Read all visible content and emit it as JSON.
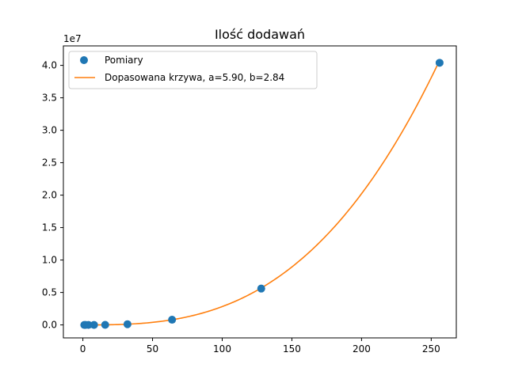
{
  "chart_data": {
    "type": "scatter",
    "title": "Ilość dodawań",
    "xlabel": "",
    "ylabel": "",
    "offset_label": "1e7",
    "xlim": [
      -14,
      268
    ],
    "ylim": [
      -2000000,
      43000000
    ],
    "y_scale": 10000000,
    "x_ticks": [
      0,
      50,
      100,
      150,
      200,
      250
    ],
    "x_tick_labels": [
      "0",
      "50",
      "100",
      "150",
      "200",
      "250"
    ],
    "y_ticks": [
      0,
      5000000,
      10000000,
      15000000,
      20000000,
      25000000,
      30000000,
      35000000,
      40000000
    ],
    "y_tick_labels": [
      "0.0",
      "0.5",
      "1.0",
      "1.5",
      "2.0",
      "2.5",
      "3.0",
      "3.5",
      "4.0"
    ],
    "grid": false,
    "legend_position": "top-left",
    "series": [
      {
        "name": "Pomiary",
        "kind": "markers",
        "color": "#1f77b4",
        "x": [
          1,
          2,
          4,
          8,
          16,
          32,
          64,
          128,
          256
        ],
        "y": [
          6,
          42,
          300,
          2300,
          14000,
          110000,
          800000,
          5600000,
          40400000
        ]
      },
      {
        "name": "Dopasowana krzywa, a=5.90, b=2.84",
        "kind": "line",
        "color": "#ff7f0e",
        "a": 5.9,
        "b": 2.84,
        "x_range": [
          1,
          256
        ]
      }
    ]
  }
}
